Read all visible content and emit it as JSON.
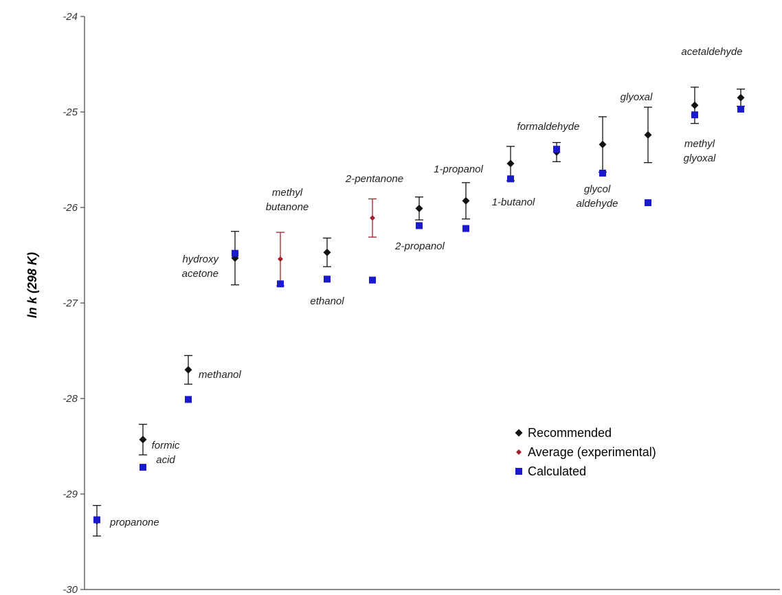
{
  "chart_data": {
    "type": "scatter",
    "title": "",
    "xlabel": "",
    "ylabel": "ln k (298 K)",
    "ylim": [
      -30,
      -24
    ],
    "yticks": [
      -24,
      -25,
      -26,
      -27,
      -28,
      -29,
      -30
    ],
    "grid": false,
    "legend_position": "bottom-right",
    "legend": [
      "Recommended",
      "Average (experimental)",
      "Calculated"
    ],
    "colors": {
      "recommended": "#111111",
      "average": "#a0202a",
      "calculated": "#1a1acc",
      "axis": "#444444"
    },
    "compounds": [
      {
        "name": "propanone",
        "recommended": -29.28,
        "error": 0.16,
        "calculated": -29.27
      },
      {
        "name": "formic acid",
        "recommended": -28.43,
        "error": 0.16,
        "calculated": -28.72
      },
      {
        "name": "methanol",
        "recommended": -27.7,
        "error": 0.15,
        "calculated": -28.01
      },
      {
        "name": "hydroxy acetone",
        "recommended": -26.53,
        "error": 0.28,
        "calculated": -26.48
      },
      {
        "name": "methyl butanone",
        "average": -26.54,
        "error": 0.28,
        "calculated": -26.8
      },
      {
        "name": "ethanol",
        "recommended": -26.47,
        "error": 0.15,
        "calculated": -26.75
      },
      {
        "name": "2-pentanone",
        "average": -26.11,
        "error": 0.2,
        "calculated": -26.76
      },
      {
        "name": "2-propanol",
        "recommended": -26.01,
        "error": 0.12,
        "calculated": -26.19
      },
      {
        "name": "1-propanol",
        "recommended": -25.93,
        "error": 0.19,
        "calculated": -26.22
      },
      {
        "name": "1-butanol",
        "recommended": -25.54,
        "error": 0.18,
        "calculated": -25.7
      },
      {
        "name": "formaldehyde",
        "recommended": -25.42,
        "error": 0.1,
        "calculated": -25.39
      },
      {
        "name": "glycol aldehyde",
        "recommended": -25.34,
        "error": 0.29,
        "calculated": -25.64
      },
      {
        "name": "glyoxal",
        "recommended": -25.24,
        "error": 0.29,
        "calculated": -25.95
      },
      {
        "name": "methyl glyoxal",
        "recommended": -24.93,
        "error": 0.19,
        "calculated": -25.03
      },
      {
        "name": "acetaldehyde",
        "recommended": -24.85,
        "error": 0.09,
        "calculated": -24.97
      }
    ],
    "labels": [
      [
        "propanone"
      ],
      [
        "formic",
        "acid"
      ],
      [
        "methanol"
      ],
      [
        "hydroxy",
        "acetone"
      ],
      [
        "methyl",
        "butanone"
      ],
      [
        "ethanol"
      ],
      [
        "2-pentanone"
      ],
      [
        "2-propanol"
      ],
      [
        "1-propanol"
      ],
      [
        "1-butanol"
      ],
      [
        "formaldehyde"
      ],
      [
        "glycol",
        "aldehyde"
      ],
      [
        "glyoxal"
      ],
      [
        "methyl",
        "glyoxal"
      ],
      [
        "acetaldehyde"
      ]
    ]
  }
}
